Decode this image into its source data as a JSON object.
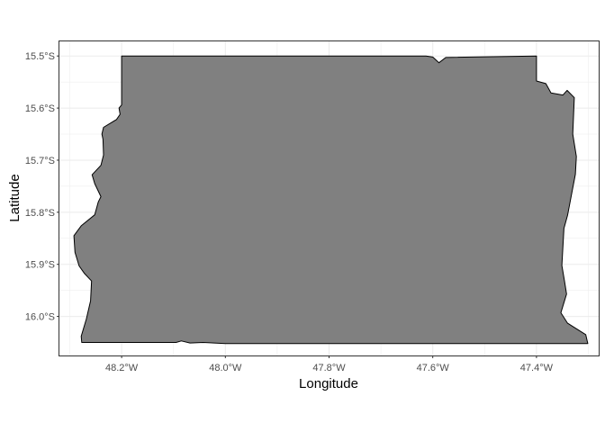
{
  "chart_data": {
    "type": "map",
    "title": "",
    "xlabel": "Longitude",
    "ylabel": "Latitude",
    "xlim": [
      -48.32,
      -47.28
    ],
    "ylim": [
      -16.075,
      -15.472
    ],
    "x_ticks": [
      {
        "value": -48.2,
        "label": "48.2°W"
      },
      {
        "value": -48.0,
        "label": "48.0°W"
      },
      {
        "value": -47.8,
        "label": "47.8°W"
      },
      {
        "value": -47.6,
        "label": "47.6°W"
      },
      {
        "value": -47.4,
        "label": "47.4°W"
      }
    ],
    "y_ticks": [
      {
        "value": -15.5,
        "label": "15.5°S"
      },
      {
        "value": -15.6,
        "label": "15.6°S"
      },
      {
        "value": -15.7,
        "label": "15.7°S"
      },
      {
        "value": -15.8,
        "label": "15.8°S"
      },
      {
        "value": -15.9,
        "label": "15.9°S"
      },
      {
        "value": -16.0,
        "label": "16.0°S"
      }
    ],
    "grid": true,
    "colors": {
      "fill": "#808080",
      "stroke": "#000000",
      "grid": "#ebebeb",
      "panel_border": "#333333"
    },
    "polygon": [
      [
        -48.2,
        -15.5
      ],
      [
        -47.8,
        -15.5
      ],
      [
        -47.613,
        -15.5
      ],
      [
        -47.6,
        -15.502
      ],
      [
        -47.588,
        -15.513
      ],
      [
        -47.575,
        -15.503
      ],
      [
        -47.4,
        -15.5
      ],
      [
        -47.4,
        -15.548
      ],
      [
        -47.382,
        -15.553
      ],
      [
        -47.372,
        -15.571
      ],
      [
        -47.349,
        -15.575
      ],
      [
        -47.341,
        -15.566
      ],
      [
        -47.327,
        -15.58
      ],
      [
        -47.33,
        -15.65
      ],
      [
        -47.323,
        -15.693
      ],
      [
        -47.325,
        -15.727
      ],
      [
        -47.34,
        -15.806
      ],
      [
        -47.347,
        -15.831
      ],
      [
        -47.351,
        -15.902
      ],
      [
        -47.346,
        -15.932
      ],
      [
        -47.342,
        -15.957
      ],
      [
        -47.353,
        -15.993
      ],
      [
        -47.34,
        -16.013
      ],
      [
        -47.305,
        -16.035
      ],
      [
        -47.301,
        -16.052
      ],
      [
        -47.8,
        -16.052
      ],
      [
        -48.0,
        -16.052
      ],
      [
        -48.043,
        -16.05
      ],
      [
        -48.068,
        -16.051
      ],
      [
        -48.085,
        -16.047
      ],
      [
        -48.095,
        -16.05
      ],
      [
        -48.277,
        -16.05
      ],
      [
        -48.278,
        -16.038
      ],
      [
        -48.268,
        -16.005
      ],
      [
        -48.26,
        -15.97
      ],
      [
        -48.258,
        -15.932
      ],
      [
        -48.272,
        -15.917
      ],
      [
        -48.282,
        -15.903
      ],
      [
        -48.29,
        -15.877
      ],
      [
        -48.292,
        -15.845
      ],
      [
        -48.278,
        -15.826
      ],
      [
        -48.252,
        -15.805
      ],
      [
        -48.245,
        -15.78
      ],
      [
        -48.24,
        -15.77
      ],
      [
        -48.252,
        -15.745
      ],
      [
        -48.257,
        -15.728
      ],
      [
        -48.24,
        -15.71
      ],
      [
        -48.235,
        -15.69
      ],
      [
        -48.236,
        -15.66
      ],
      [
        -48.238,
        -15.65
      ],
      [
        -48.235,
        -15.637
      ],
      [
        -48.21,
        -15.622
      ],
      [
        -48.203,
        -15.612
      ],
      [
        -48.205,
        -15.6
      ],
      [
        -48.2,
        -15.594
      ],
      [
        -48.2,
        -15.5
      ]
    ]
  }
}
